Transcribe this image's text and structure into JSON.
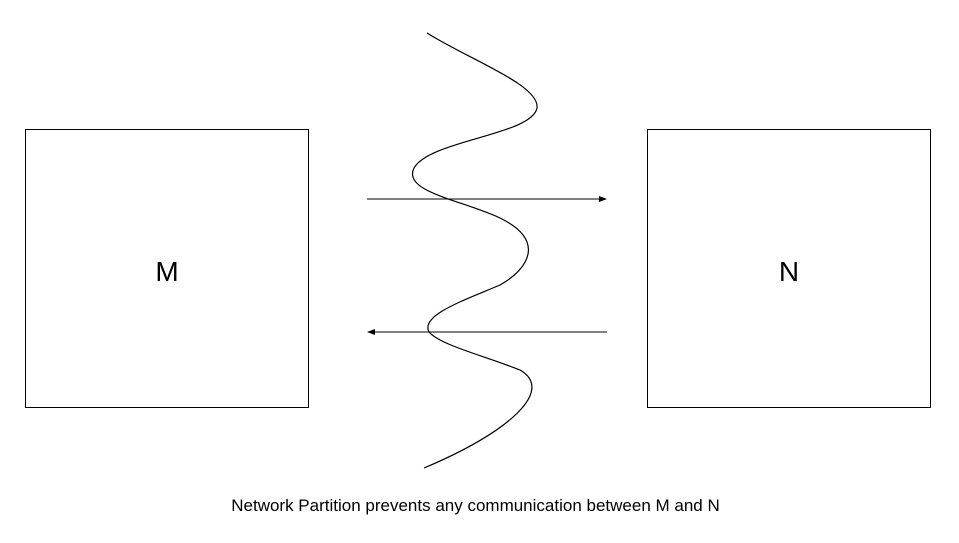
{
  "nodes": {
    "left": {
      "label": "M"
    },
    "right": {
      "label": "N"
    }
  },
  "caption": "Network Partition prevents any communication between M and N",
  "colors": {
    "stroke": "#000000",
    "background": "#ffffff"
  }
}
